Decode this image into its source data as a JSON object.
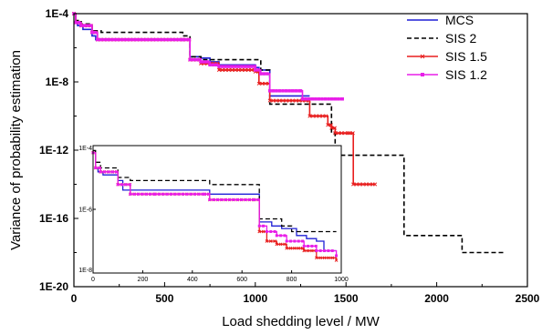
{
  "chart_data": [
    {
      "type": "line",
      "xlabel": "Load shedding level / MW",
      "ylabel": "Variance of probability estimation",
      "x_scale": "linear",
      "y_scale": "log",
      "xlim": [
        0,
        2500
      ],
      "ylim": [
        1e-20,
        0.0001
      ],
      "x_ticks": [
        0,
        500,
        1000,
        1500,
        2000,
        2500
      ],
      "y_ticks": [
        1e-20,
        1e-16,
        1e-12,
        1e-08,
        0.0001
      ],
      "x_tick_labels": [
        "0",
        "500",
        "1000",
        "1500",
        "2000",
        "2500"
      ],
      "y_tick_labels": [
        "1E-20",
        "1E-16",
        "1E-12",
        "1E-8",
        "1E-4"
      ],
      "legend_position": "top-right",
      "series": [
        {
          "name": "MCS",
          "color": "#1f1fd6",
          "line_style": "solid",
          "marker": "none",
          "x": [
            0,
            10,
            20,
            40,
            50,
            100,
            120,
            600,
            640,
            700,
            750,
            800,
            1000,
            1020,
            1080,
            1300
          ],
          "y": [
            0.0001,
            3e-05,
            2e-05,
            2e-05,
            1.2e-05,
            5e-06,
            3e-06,
            3e-06,
            3e-07,
            2.5e-07,
            1.5e-07,
            1e-07,
            7e-08,
            5e-08,
            1.5e-09,
            1.5e-09
          ]
        },
        {
          "name": "SIS 2",
          "color": "#000000",
          "line_style": "dashed",
          "marker": "none",
          "x": [
            0,
            10,
            40,
            100,
            150,
            450,
            600,
            640,
            700,
            1000,
            1030,
            1080,
            1400,
            1420,
            1440,
            1460,
            1520,
            1800,
            1820,
            2120,
            2140,
            2370
          ],
          "y": [
            0.0001,
            4e-05,
            2.5e-05,
            1e-05,
            8e-06,
            8e-06,
            5e-06,
            3e-07,
            2e-07,
            2e-07,
            5e-08,
            5e-10,
            5e-10,
            1e-11,
            1e-12,
            5e-13,
            5e-13,
            5e-13,
            1e-17,
            1e-17,
            1e-18,
            1e-18
          ]
        },
        {
          "name": "SIS 1.5",
          "color": "#e81f1f",
          "line_style": "solid",
          "marker": "x",
          "x": [
            0,
            10,
            40,
            100,
            130,
            600,
            640,
            700,
            800,
            1000,
            1020,
            1080,
            1300,
            1400,
            1420,
            1440,
            1520,
            1540,
            1660
          ],
          "y": [
            0.0001,
            3e-05,
            2e-05,
            8e-06,
            3e-06,
            3e-06,
            2e-07,
            1.2e-07,
            5e-08,
            4e-08,
            8e-09,
            8e-10,
            1e-10,
            3e-11,
            2e-11,
            1e-11,
            1e-11,
            1e-14,
            1e-14
          ]
        },
        {
          "name": "SIS 1.2",
          "color": "#e81fe8",
          "line_style": "solid",
          "marker": "square",
          "x": [
            0,
            10,
            40,
            100,
            130,
            600,
            640,
            700,
            750,
            800,
            1000,
            1030,
            1080,
            1250,
            1260,
            1480
          ],
          "y": [
            0.0001,
            3e-05,
            2e-05,
            8e-06,
            3e-06,
            3e-06,
            2e-07,
            1.5e-07,
            1e-07,
            8e-08,
            5e-08,
            3e-08,
            3e-09,
            3e-09,
            1e-09,
            1e-09
          ]
        }
      ]
    },
    {
      "type": "line",
      "role": "inset",
      "x_scale": "linear",
      "y_scale": "log",
      "xlim": [
        0,
        1000
      ],
      "ylim": [
        1e-08,
        0.0001
      ],
      "x_ticks": [
        0,
        200,
        400,
        600,
        800,
        1000
      ],
      "y_ticks": [
        1e-08,
        1e-06,
        0.0001
      ],
      "x_tick_labels": [
        "0",
        "200",
        "400",
        "600",
        "800",
        "1000"
      ],
      "y_tick_labels": [
        "1E-8",
        "1E-6",
        "1E-4"
      ],
      "series": [
        {
          "series_ref": "MCS",
          "color": "#1f1fd6",
          "line_style": "solid",
          "marker": "none",
          "x": [
            0,
            10,
            20,
            40,
            100,
            120,
            250,
            450,
            470,
            650,
            670,
            720,
            760,
            820,
            860,
            900,
            930,
            980
          ],
          "y": [
            6e-05,
            2e-05,
            1.5e-05,
            1.2e-05,
            8e-06,
            4e-06,
            4e-06,
            4e-06,
            3e-06,
            3e-06,
            4e-07,
            3e-07,
            2.5e-07,
            1.5e-07,
            1.2e-07,
            1e-07,
            5e-08,
            5e-08
          ]
        },
        {
          "series_ref": "SIS 2",
          "color": "#000000",
          "line_style": "dashed",
          "marker": "none",
          "x": [
            0,
            10,
            30,
            100,
            150,
            450,
            470,
            650,
            670,
            760,
            800,
            980
          ],
          "y": [
            7e-05,
            3e-05,
            2e-05,
            1e-05,
            8e-06,
            8e-06,
            6e-06,
            6e-06,
            5e-07,
            3e-07,
            2e-07,
            2e-07
          ]
        },
        {
          "series_ref": "SIS 1.5",
          "color": "#e81f1f",
          "line_style": "solid",
          "marker": "x",
          "x": [
            0,
            10,
            30,
            100,
            150,
            250,
            450,
            470,
            650,
            670,
            700,
            740,
            780,
            850,
            900,
            980
          ],
          "y": [
            6e-05,
            2e-05,
            1.5e-05,
            6e-06,
            3e-06,
            3e-06,
            3e-06,
            2e-06,
            2e-06,
            2e-07,
            1e-07,
            8e-08,
            6e-08,
            5e-08,
            3e-08,
            2.5e-08
          ]
        },
        {
          "series_ref": "SIS 1.2",
          "color": "#e81fe8",
          "line_style": "solid",
          "marker": "square",
          "x": [
            0,
            10,
            30,
            100,
            150,
            250,
            450,
            470,
            650,
            670,
            700,
            740,
            780,
            850,
            900,
            980
          ],
          "y": [
            6e-05,
            2e-05,
            1.5e-05,
            6e-06,
            3e-06,
            3e-06,
            3e-06,
            2e-06,
            2e-06,
            3e-07,
            2e-07,
            1.5e-07,
            1e-07,
            7e-08,
            5e-08,
            3.5e-08
          ]
        }
      ]
    }
  ]
}
